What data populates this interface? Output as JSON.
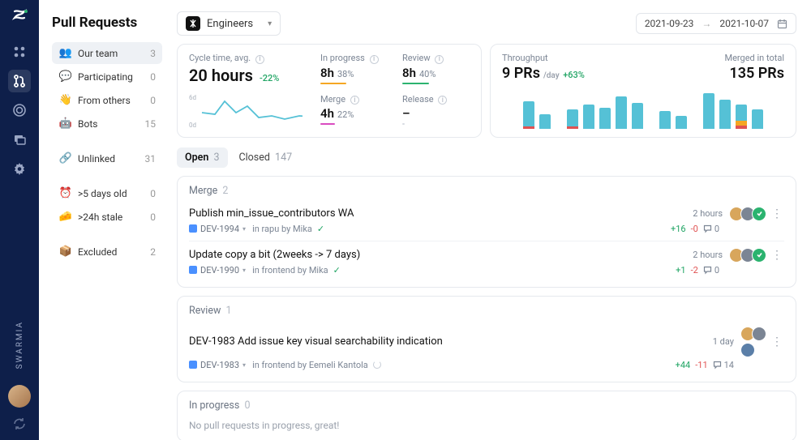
{
  "brand": "SWARMIA",
  "page_title": "Pull Requests",
  "team_selector": {
    "label": "Engineers"
  },
  "date_range": {
    "from": "2021-09-23",
    "to": "2021-10-07"
  },
  "sidebar": {
    "groups": [
      [
        {
          "emoji": "👥",
          "label": "Our team",
          "count": 3,
          "active": true
        },
        {
          "emoji": "💬",
          "label": "Participating",
          "count": 0
        },
        {
          "emoji": "👋",
          "label": "From others",
          "count": 0
        },
        {
          "emoji": "🤖",
          "label": "Bots",
          "count": 15
        }
      ],
      [
        {
          "emoji": "🔗",
          "label": "Unlinked",
          "count": 31
        }
      ],
      [
        {
          "emoji": "⏰",
          "label": ">5 days old",
          "count": 0
        },
        {
          "emoji": "🧀",
          "label": ">24h stale",
          "count": 0
        }
      ],
      [
        {
          "emoji": "📦",
          "label": "Excluded",
          "count": 2
        }
      ]
    ]
  },
  "cycle": {
    "label": "Cycle time, avg.",
    "value": "20 hours",
    "delta": "-22%",
    "delta_color": "#1fa463",
    "spark": {
      "width": 140,
      "height": 44,
      "y_labels": [
        "6d",
        "0d"
      ],
      "stroke": "#55c1d6",
      "fill": "none",
      "points": [
        2,
        18,
        18,
        20,
        30,
        4,
        44,
        18,
        58,
        10,
        72,
        24,
        88,
        22,
        104,
        26,
        122,
        22,
        140,
        23
      ]
    },
    "stages": [
      {
        "label": "In progress",
        "value": "8h",
        "pct": "38%",
        "bar_color": "#f5a623",
        "bar_pct": 38
      },
      {
        "label": "Review",
        "value": "8h",
        "pct": "40%",
        "bar_color": "#2bb36f",
        "bar_pct": 40
      },
      {
        "label": "Merge",
        "value": "4h",
        "pct": "22%",
        "bar_color": "#d94cc0",
        "bar_pct": 22
      },
      {
        "label": "Release",
        "value": "–",
        "pct": "",
        "bar_color": "#d7dbe2",
        "bar_pct": 0
      }
    ]
  },
  "throughput": {
    "left_label": "Throughput",
    "left_value": "9 PRs",
    "left_unit": "/day",
    "left_delta": "+63%",
    "left_delta_color": "#1fa463",
    "right_label": "Merged in total",
    "right_value": "135 PRs",
    "bar_color": "#55c1d6",
    "accent1": "#f5a623",
    "accent2": "#e05252",
    "groups": [
      {
        "bars": [
          {
            "h": 34,
            "a1": 0,
            "a2": 3
          },
          {
            "h": 18,
            "a1": 0,
            "a2": 0
          }
        ]
      },
      {
        "bars": [
          {
            "h": 24,
            "a1": 0,
            "a2": 3
          },
          {
            "h": 30,
            "a1": 0,
            "a2": 0
          },
          {
            "h": 26,
            "a1": 0,
            "a2": 0
          },
          {
            "h": 40,
            "a1": 0,
            "a2": 0
          },
          {
            "h": 32,
            "a1": 0,
            "a2": 0
          }
        ]
      },
      {
        "bars": [
          {
            "h": 22,
            "a1": 0,
            "a2": 0
          },
          {
            "h": 16,
            "a1": 0,
            "a2": 0
          }
        ]
      },
      {
        "bars": [
          {
            "h": 44,
            "a1": 0,
            "a2": 0
          },
          {
            "h": 36,
            "a1": 0,
            "a2": 0
          },
          {
            "h": 30,
            "a1": 6,
            "a2": 4
          },
          {
            "h": 24,
            "a1": 0,
            "a2": 0
          }
        ]
      }
    ]
  },
  "tabs": [
    {
      "label": "Open",
      "count": 3,
      "active": true
    },
    {
      "label": "Closed",
      "count": 147,
      "active": false
    }
  ],
  "sections": [
    {
      "title": "Merge",
      "count": 2,
      "prs": [
        {
          "title": "Publish min_issue_contributors WA",
          "key": "DEV-1994",
          "sub": "in rapu by Mika",
          "status": "check",
          "age": "2 hours",
          "add": "+16",
          "del": "-0",
          "comments": 0,
          "avatars": [
            "#d8a65c",
            "#7b8594"
          ],
          "badge": true
        },
        {
          "title": "Update copy a bit (2weeks -> 7 days)",
          "key": "DEV-1990",
          "sub": "in frontend by Mika",
          "status": "check",
          "age": "2 hours",
          "add": "+1",
          "del": "-2",
          "comments": 0,
          "avatars": [
            "#d8a65c",
            "#7b8594"
          ],
          "badge": true
        }
      ]
    },
    {
      "title": "Review",
      "count": 1,
      "prs": [
        {
          "title": "DEV-1983 Add issue key visual searchability indication",
          "key": "DEV-1983",
          "sub": "in frontend by Eemeli Kantola",
          "status": "spin",
          "age": "1 day",
          "add": "+44",
          "del": "-11",
          "comments": 14,
          "avatar_rows": [
            [
              "#d8a65c",
              "#7b8594"
            ],
            [
              "#5b7fa8"
            ]
          ]
        }
      ]
    },
    {
      "title": "In progress",
      "count": 0,
      "empty_text": "No pull requests in progress, great!"
    }
  ]
}
